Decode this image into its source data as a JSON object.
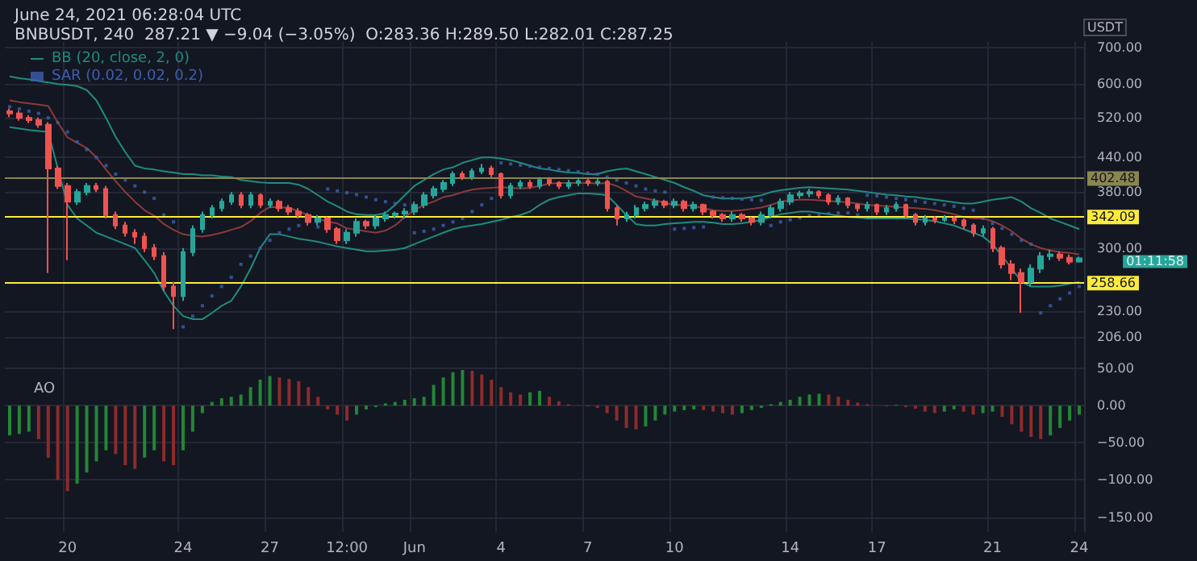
{
  "chart_data": [
    {
      "type": "candlestick",
      "title": "June 24, 2021 06:28:04 UTC",
      "subtitle": "BNBUSDT, 240  287.21 ▼ −9.04 (−3.05%)  O:283.36 H:289.50 L:282.01 C:287.25",
      "ylabel": "USDT",
      "log": true,
      "grid": true,
      "legend": "top left",
      "tick_labels": "y",
      "ylim": [
        186,
        717
      ],
      "yticks": [
        {
          "value": 206,
          "label": "206.00"
        },
        {
          "value": 230,
          "label": "230.00"
        },
        {
          "value": 300,
          "label": "300.00"
        },
        {
          "value": 380,
          "label": "380.00"
        },
        {
          "value": 440,
          "label": "440.00"
        },
        {
          "value": 520,
          "label": "520.00"
        },
        {
          "value": 600,
          "label": "600.00"
        },
        {
          "value": 700,
          "label": "700.00"
        }
      ],
      "ref_lines": [
        {
          "axis": "y",
          "value": 402.48,
          "label": "402.48",
          "color": "#8a8650"
        },
        {
          "axis": "y",
          "value": 342.09,
          "label": "342.09",
          "color": "#ffeb3b"
        },
        {
          "axis": "y",
          "value": 258.66,
          "label": "258.66",
          "color": "#ffeb3b"
        }
      ],
      "annotations": [
        "01:11:58"
      ],
      "series": [
        {
          "colors": [
            "#ef5350",
            "#ef5350",
            "#ef5350",
            "#ef5350",
            "#ef5350",
            "#ef5350",
            "#ef5350",
            "#26a69a",
            "#26a69a",
            "#ef5350",
            "#ef5350",
            "#ef5350",
            "#ef5350",
            "#ef5350",
            "#ef5350",
            "#ef5350",
            "#ef5350",
            "#ef5350",
            "#26a69a",
            "#26a69a",
            "#26a69a",
            "#26a69a",
            "#26a69a",
            "#26a69a",
            "#ef5350",
            "#26a69a",
            "#ef5350",
            "#26a69a",
            "#ef5350",
            "#ef5350",
            "#ef5350",
            "#ef5350",
            "#26a69a",
            "#ef5350",
            "#ef5350",
            "#26a69a",
            "#26a69a",
            "#ef5350",
            "#26a69a",
            "#26a69a",
            "#26a69a",
            "#26a69a",
            "#26a69a",
            "#26a69a",
            "#26a69a",
            "#26a69a",
            "#26a69a",
            "#ef5350",
            "#26a69a",
            "#26a69a",
            "#ef5350",
            "#ef5350",
            "#26a69a",
            "#26a69a",
            "#ef5350",
            "#26a69a",
            "#ef5350",
            "#ef5350",
            "#26a69a",
            "#26a69a",
            "#ef5350",
            "#26a69a",
            "#ef5350",
            "#ef5350",
            "#26a69a",
            "#26a69a",
            "#26a69a",
            "#26a69a",
            "#ef5350",
            "#26a69a",
            "#ef5350",
            "#26a69a",
            "#ef5350",
            "#ef5350",
            "#ef5350",
            "#26a69a",
            "#ef5350",
            "#ef5350",
            "#26a69a",
            "#26a69a",
            "#26a69a",
            "#26a69a",
            "#26a69a",
            "#26a69a",
            "#ef5350",
            "#ef5350",
            "#26a69a",
            "#ef5350",
            "#ef5350",
            "#26a69a",
            "#ef5350",
            "#26a69a",
            "#26a69a",
            "#ef5350",
            "#ef5350",
            "#26a69a",
            "#ef5350",
            "#26a69a",
            "#ef5350",
            "#ef5350",
            "#ef5350",
            "#26a69a",
            "#ef5350",
            "#ef5350",
            "#ef5350",
            "#ef5350",
            "#26a69a",
            "#26a69a",
            "#26a69a",
            "#ef5350",
            "#ef5350",
            "#26a69a"
          ],
          "ohlc": [
            [
              535,
              541,
              522,
              530
            ],
            [
              530,
              536,
              514,
              520
            ],
            [
              520,
              526,
              509,
              515
            ],
            [
              515,
              521,
              499,
              505
            ],
            [
              505,
              511,
              270,
              420
            ],
            [
              420,
              425,
              385,
              390
            ],
            [
              390,
              395,
              285,
              365
            ],
            [
              365,
              385,
              360,
              380
            ],
            [
              380,
              395,
              375,
              390
            ],
            [
              390,
              395,
              380,
              385
            ],
            [
              385,
              390,
              340,
              345
            ],
            [
              345,
              350,
              325,
              330
            ],
            [
              330,
              335,
              315,
              320
            ],
            [
              320,
              325,
              305,
              315
            ],
            [
              315,
              320,
              295,
              300
            ],
            [
              300,
              305,
              285,
              290
            ],
            [
              290,
              295,
              250,
              255
            ],
            [
              255,
              260,
              213,
              245
            ],
            [
              245,
              300,
              240,
              295
            ],
            [
              295,
              330,
              290,
              325
            ],
            [
              325,
              350,
              320,
              345
            ],
            [
              345,
              360,
              340,
              355
            ],
            [
              355,
              370,
              350,
              365
            ],
            [
              365,
              380,
              360,
              375
            ],
            [
              375,
              380,
              355,
              360
            ],
            [
              360,
              380,
              355,
              375
            ],
            [
              375,
              378,
              355,
              360
            ],
            [
              360,
              370,
              355,
              365
            ],
            [
              365,
              368,
              350,
              355
            ],
            [
              355,
              360,
              345,
              350
            ],
            [
              350,
              355,
              340,
              345
            ],
            [
              345,
              348,
              330,
              335
            ],
            [
              335,
              345,
              330,
              340
            ],
            [
              340,
              342,
              320,
              325
            ],
            [
              325,
              328,
              305,
              310
            ],
            [
              310,
              325,
              305,
              320
            ],
            [
              320,
              340,
              315,
              335
            ],
            [
              335,
              338,
              325,
              330
            ],
            [
              330,
              345,
              325,
              340
            ],
            [
              340,
              350,
              335,
              345
            ],
            [
              345,
              350,
              340,
              347
            ],
            [
              347,
              355,
              340,
              350
            ],
            [
              350,
              365,
              345,
              360
            ],
            [
              360,
              380,
              355,
              375
            ],
            [
              375,
              390,
              370,
              385
            ],
            [
              385,
              400,
              380,
              395
            ],
            [
              395,
              415,
              390,
              410
            ],
            [
              410,
              415,
              400,
              405
            ],
            [
              405,
              420,
              400,
              415
            ],
            [
              415,
              428,
              410,
              420
            ],
            [
              420,
              425,
              405,
              410
            ],
            [
              410,
              413,
              370,
              375
            ],
            [
              375,
              395,
              370,
              390
            ],
            [
              390,
              400,
              385,
              395
            ],
            [
              395,
              400,
              385,
              390
            ],
            [
              390,
              405,
              385,
              400
            ],
            [
              400,
              405,
              390,
              395
            ],
            [
              395,
              398,
              385,
              390
            ],
            [
              390,
              400,
              385,
              395
            ],
            [
              395,
              403,
              390,
              398
            ],
            [
              398,
              402,
              390,
              395
            ],
            [
              395,
              402,
              390,
              397
            ],
            [
              397,
              400,
              350,
              355
            ],
            [
              355,
              360,
              330,
              340
            ],
            [
              340,
              350,
              335,
              345
            ],
            [
              345,
              360,
              340,
              355
            ],
            [
              355,
              365,
              350,
              360
            ],
            [
              360,
              370,
              355,
              365
            ],
            [
              365,
              368,
              355,
              360
            ],
            [
              360,
              370,
              355,
              365
            ],
            [
              365,
              368,
              350,
              355
            ],
            [
              355,
              365,
              350,
              360
            ],
            [
              360,
              362,
              345,
              350
            ],
            [
              350,
              352,
              340,
              345
            ],
            [
              345,
              348,
              335,
              340
            ],
            [
              340,
              350,
              335,
              345
            ],
            [
              345,
              348,
              335,
              340
            ],
            [
              340,
              342,
              330,
              335
            ],
            [
              335,
              350,
              330,
              345
            ],
            [
              345,
              360,
              340,
              355
            ],
            [
              355,
              370,
              350,
              365
            ],
            [
              365,
              380,
              360,
              375
            ],
            [
              375,
              382,
              370,
              378
            ],
            [
              378,
              385,
              372,
              380
            ],
            [
              380,
              383,
              370,
              375
            ],
            [
              375,
              378,
              360,
              365
            ],
            [
              365,
              375,
              360,
              370
            ],
            [
              370,
              372,
              355,
              360
            ],
            [
              360,
              362,
              350,
              355
            ],
            [
              355,
              365,
              350,
              360
            ],
            [
              360,
              362,
              345,
              350
            ],
            [
              350,
              360,
              345,
              355
            ],
            [
              355,
              365,
              350,
              360
            ],
            [
              360,
              362,
              340,
              345
            ],
            [
              345,
              348,
              330,
              335
            ],
            [
              335,
              345,
              330,
              340
            ],
            [
              340,
              343,
              333,
              338
            ],
            [
              338,
              345,
              335,
              340
            ],
            [
              340,
              343,
              332,
              337
            ],
            [
              337,
              340,
              325,
              330
            ],
            [
              330,
              333,
              315,
              320
            ],
            [
              320,
              330,
              315,
              325
            ],
            [
              325,
              328,
              295,
              300
            ],
            [
              300,
              303,
              275,
              280
            ],
            [
              280,
              285,
              262,
              270
            ],
            [
              270,
              275,
              228,
              260
            ],
            [
              260,
              280,
              255,
              275
            ],
            [
              275,
              295,
              270,
              290
            ],
            [
              290,
              298,
              285,
              292
            ],
            [
              292,
              296,
              284,
              288
            ],
            [
              288,
              292,
              280,
              283
            ],
            [
              283.36,
              289.5,
              282.01,
              287.25
            ]
          ]
        },
        {
          "type": "line",
          "name": "BB (20, close, 2, 0)",
          "color": "#1e8c7e",
          "values": [
            620,
            615,
            612,
            608,
            604,
            600,
            598,
            595,
            585,
            560,
            520,
            480,
            450,
            425,
            420,
            418,
            415,
            413,
            410,
            410,
            408,
            408,
            406,
            405,
            400,
            398,
            396,
            395,
            395,
            395,
            392,
            385,
            375,
            365,
            358,
            350,
            346,
            345,
            345,
            348,
            360,
            375,
            390,
            400,
            410,
            418,
            422,
            430,
            435,
            440,
            440,
            438,
            435,
            430,
            425,
            420,
            418,
            415,
            413,
            412,
            410,
            410,
            415,
            418,
            420,
            415,
            410,
            405,
            400,
            395,
            388,
            382,
            375,
            372,
            370,
            370,
            370,
            372,
            375,
            380,
            383,
            385,
            387,
            388,
            387,
            386,
            385,
            384,
            382,
            380,
            378,
            376,
            375,
            373,
            372,
            370,
            368,
            366,
            364,
            362,
            362,
            365,
            368,
            370,
            372,
            365,
            355,
            348,
            340,
            335,
            330,
            325
          ]
        },
        {
          "type": "line",
          "color": "#8b3a3a",
          "values": [
            560,
            556,
            553,
            550,
            547,
            510,
            479,
            468,
            458,
            440,
            418,
            398,
            380,
            365,
            352,
            344,
            332,
            324,
            318,
            316,
            315,
            317,
            320,
            324,
            328,
            336,
            348,
            357,
            356,
            356,
            350,
            345,
            340,
            335,
            333,
            326,
            324,
            322,
            320,
            323,
            330,
            342,
            352,
            360,
            365,
            372,
            375,
            380,
            384,
            386,
            387,
            388,
            387,
            386,
            387,
            390,
            394,
            395,
            395,
            395,
            395,
            394,
            395,
            390,
            382,
            373,
            370,
            367,
            363,
            360,
            360,
            358,
            355,
            352,
            351,
            351,
            352,
            354,
            356,
            360,
            365,
            367,
            368,
            368,
            367,
            366,
            365,
            364,
            362,
            360,
            359,
            358,
            357,
            356,
            355,
            354,
            352,
            349,
            346,
            342,
            340,
            340,
            336,
            330,
            322,
            312,
            305,
            300,
            297,
            295,
            294,
            292
          ]
        },
        {
          "type": "line",
          "color": "#1e8c7e",
          "values": [
            500,
            497,
            494,
            492,
            490,
            420,
            360,
            340,
            330,
            320,
            315,
            310,
            305,
            300,
            285,
            270,
            250,
            235,
            225,
            222,
            222,
            228,
            235,
            240,
            255,
            275,
            300,
            318,
            318,
            315,
            312,
            310,
            308,
            305,
            302,
            300,
            298,
            296,
            296,
            297,
            298,
            300,
            305,
            310,
            315,
            320,
            325,
            328,
            330,
            332,
            335,
            338,
            342,
            345,
            350,
            360,
            368,
            372,
            375,
            378,
            378,
            377,
            375,
            360,
            345,
            332,
            330,
            330,
            332,
            333,
            334,
            335,
            335,
            334,
            332,
            332,
            333,
            335,
            338,
            342,
            346,
            348,
            350,
            350,
            348,
            346,
            344,
            342,
            341,
            340,
            340,
            340,
            340,
            340,
            339,
            338,
            336,
            333,
            330,
            325,
            320,
            315,
            305,
            290,
            275,
            260,
            255,
            255,
            255,
            256,
            258,
            260
          ]
        },
        {
          "type": "scatter",
          "name": "SAR (0.02, 0.02, 0.2)",
          "color": "#3d5fb0",
          "marker": "square",
          "values": [
            545,
            540,
            535,
            530,
            520,
            510,
            490,
            470,
            455,
            440,
            425,
            410,
            400,
            390,
            380,
            370,
            345,
            335,
            215,
            225,
            235,
            245,
            255,
            265,
            280,
            290,
            300,
            310,
            320,
            325,
            330,
            335,
            328,
            385,
            382,
            379,
            376,
            372,
            368,
            365,
            362,
            360,
            320,
            322,
            325,
            330,
            335,
            340,
            350,
            360,
            370,
            430,
            428,
            426,
            424,
            422,
            420,
            418,
            416,
            414,
            412,
            410,
            405,
            400,
            395,
            390,
            385,
            382,
            380,
            325,
            326,
            327,
            328,
            372,
            371,
            370,
            369,
            368,
            367,
            330,
            335,
            338,
            341,
            344,
            346,
            347,
            348,
            348,
            345,
            375,
            374,
            372,
            370,
            368,
            366,
            364,
            362,
            360,
            358,
            355,
            352,
            340,
            333,
            326,
            318,
            310,
            305,
            228,
            235,
            242,
            248,
            255
          ]
        }
      ]
    },
    {
      "type": "bar",
      "title": "AO",
      "grid": true,
      "categories": [
        null,
        null,
        null,
        null,
        null,
        null,
        "20",
        null,
        null,
        null,
        null,
        null,
        null,
        null,
        null,
        null,
        null,
        null,
        "24",
        null,
        null,
        null,
        null,
        null,
        null,
        null,
        null,
        "27",
        null,
        null,
        null,
        null,
        null,
        null,
        null,
        "12:00",
        null,
        null,
        null,
        null,
        null,
        null,
        "Jun",
        null,
        null,
        null,
        null,
        null,
        null,
        null,
        null,
        "4",
        null,
        null,
        null,
        null,
        null,
        null,
        null,
        null,
        "7",
        null,
        null,
        null,
        null,
        null,
        null,
        null,
        null,
        "10",
        null,
        null,
        null,
        null,
        null,
        null,
        null,
        null,
        null,
        null,
        null,
        "14",
        null,
        null,
        null,
        null,
        null,
        null,
        null,
        null,
        "17",
        null,
        null,
        null,
        null,
        null,
        null,
        null,
        null,
        null,
        null,
        null,
        "21",
        null,
        null,
        null,
        null,
        null,
        null,
        null,
        null,
        "24"
      ],
      "ylim": [
        -170,
        60
      ],
      "yticks": [
        {
          "value": -150,
          "label": "−150.00"
        },
        {
          "value": -100,
          "label": "−100.00"
        },
        {
          "value": -50,
          "label": "−50.00"
        },
        {
          "value": 0,
          "label": "0.00"
        },
        {
          "value": 50,
          "label": "50.00"
        }
      ],
      "values": [
        -40,
        -38,
        -35,
        -45,
        -70,
        -100,
        -115,
        -105,
        -90,
        -75,
        -60,
        -65,
        -80,
        -85,
        -70,
        -60,
        -75,
        -80,
        -60,
        -35,
        -10,
        5,
        10,
        12,
        15,
        25,
        35,
        40,
        38,
        36,
        33,
        25,
        12,
        -5,
        -12,
        -20,
        -12,
        -5,
        -2,
        3,
        5,
        8,
        10,
        12,
        28,
        38,
        45,
        48,
        47,
        42,
        35,
        25,
        18,
        15,
        18,
        20,
        12,
        6,
        2,
        0,
        -1,
        -3,
        -10,
        -20,
        -30,
        -32,
        -28,
        -20,
        -12,
        -8,
        -6,
        -5,
        -6,
        -8,
        -10,
        -12,
        -10,
        -6,
        -3,
        2,
        5,
        8,
        12,
        15,
        16,
        15,
        12,
        8,
        4,
        2,
        0,
        -1,
        1,
        -2,
        -4,
        -8,
        -10,
        -8,
        -5,
        -8,
        -12,
        -10,
        -8,
        -15,
        -25,
        -35,
        -42,
        -45,
        -40,
        -30,
        -20,
        -12
      ],
      "colors": [
        "#238636",
        "#238636",
        "#238636",
        "#8e2b2b",
        "#8e2b2b",
        "#8e2b2b",
        "#8e2b2b",
        "#238636",
        "#238636",
        "#238636",
        "#238636",
        "#8e2b2b",
        "#8e2b2b",
        "#8e2b2b",
        "#238636",
        "#238636",
        "#8e2b2b",
        "#8e2b2b",
        "#238636",
        "#238636",
        "#238636",
        "#238636",
        "#238636",
        "#238636",
        "#238636",
        "#238636",
        "#238636",
        "#238636",
        "#8e2b2b",
        "#8e2b2b",
        "#8e2b2b",
        "#8e2b2b",
        "#8e2b2b",
        "#8e2b2b",
        "#8e2b2b",
        "#8e2b2b",
        "#238636",
        "#238636",
        "#238636",
        "#238636",
        "#238636",
        "#238636",
        "#238636",
        "#238636",
        "#238636",
        "#238636",
        "#238636",
        "#238636",
        "#8e2b2b",
        "#8e2b2b",
        "#8e2b2b",
        "#8e2b2b",
        "#8e2b2b",
        "#8e2b2b",
        "#238636",
        "#238636",
        "#8e2b2b",
        "#8e2b2b",
        "#8e2b2b",
        "#8e2b2b",
        "#8e2b2b",
        "#8e2b2b",
        "#8e2b2b",
        "#8e2b2b",
        "#8e2b2b",
        "#8e2b2b",
        "#238636",
        "#238636",
        "#238636",
        "#238636",
        "#238636",
        "#238636",
        "#8e2b2b",
        "#8e2b2b",
        "#8e2b2b",
        "#8e2b2b",
        "#238636",
        "#238636",
        "#238636",
        "#238636",
        "#238636",
        "#238636",
        "#238636",
        "#238636",
        "#238636",
        "#8e2b2b",
        "#8e2b2b",
        "#8e2b2b",
        "#8e2b2b",
        "#8e2b2b",
        "#8e2b2b",
        "#8e2b2b",
        "#238636",
        "#8e2b2b",
        "#8e2b2b",
        "#8e2b2b",
        "#8e2b2b",
        "#238636",
        "#238636",
        "#8e2b2b",
        "#8e2b2b",
        "#238636",
        "#238636",
        "#8e2b2b",
        "#8e2b2b",
        "#8e2b2b",
        "#8e2b2b",
        "#8e2b2b",
        "#238636",
        "#238636",
        "#238636",
        "#238636"
      ]
    }
  ]
}
